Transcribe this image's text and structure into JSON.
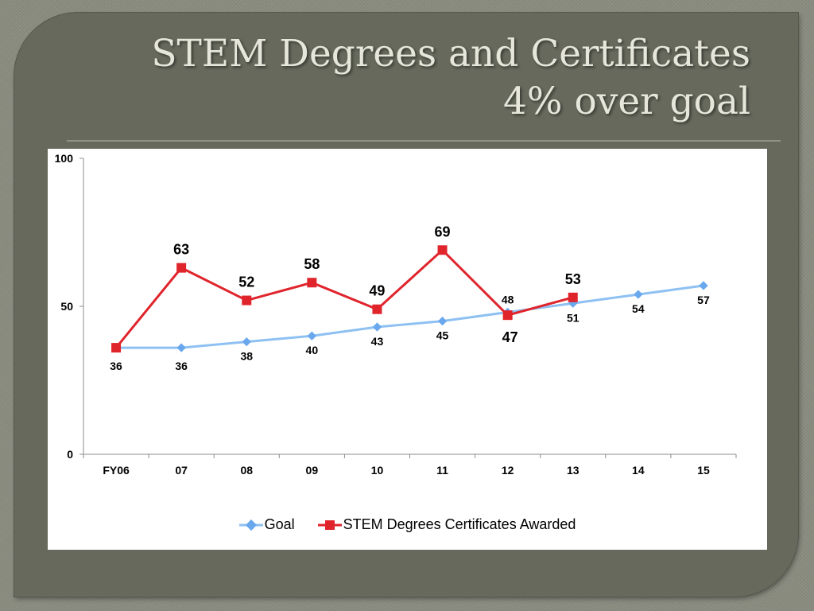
{
  "slide": {
    "title_line1": "STEM Degrees and Certificates",
    "title_line2": "4% over goal"
  },
  "colors": {
    "goal": "#8ec1f2",
    "goal_marker": "#6aa8ee",
    "awarded": "#e0242c",
    "background": "#66695c"
  },
  "chart_data": {
    "type": "line",
    "categories": [
      "FY06",
      "07",
      "08",
      "09",
      "10",
      "11",
      "12",
      "13",
      "14",
      "15"
    ],
    "series": [
      {
        "name": "Goal",
        "values": [
          36,
          36,
          38,
          40,
          43,
          45,
          48,
          51,
          54,
          57
        ]
      },
      {
        "name": "STEM Degrees Certificates Awarded",
        "values": [
          36,
          63,
          52,
          58,
          49,
          69,
          47,
          53,
          null,
          null
        ]
      }
    ],
    "y_ticks": [
      0,
      50,
      100
    ],
    "ylim": [
      0,
      100
    ],
    "grid": false,
    "legend_position": "bottom"
  }
}
